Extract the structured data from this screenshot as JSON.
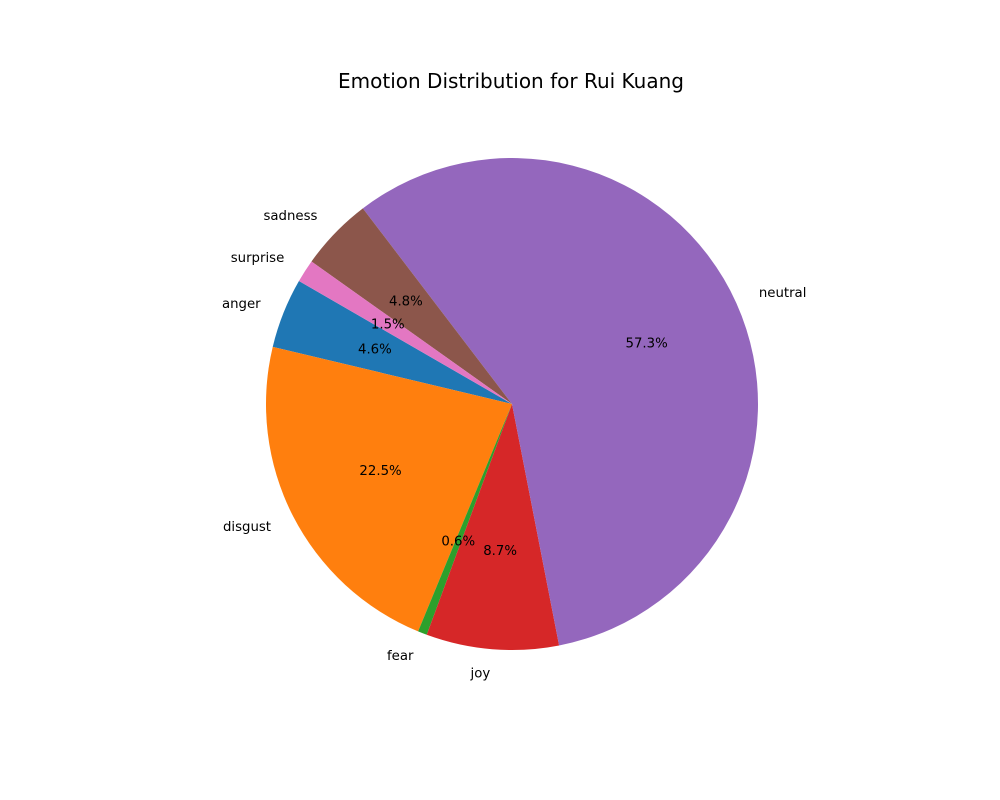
{
  "chart_data": {
    "type": "pie",
    "title": "Emotion Distribution for Rui Kuang",
    "start_angle_deg": 150,
    "direction": "counterclockwise",
    "slices": [
      {
        "label": "anger",
        "percent_label": "4.6%",
        "value": 4.6,
        "color": "#1f77b4"
      },
      {
        "label": "disgust",
        "percent_label": "22.5%",
        "value": 22.5,
        "color": "#ff7f0e"
      },
      {
        "label": "fear",
        "percent_label": "0.6%",
        "value": 0.6,
        "color": "#2ca02c"
      },
      {
        "label": "joy",
        "percent_label": "8.7%",
        "value": 8.7,
        "color": "#d62728"
      },
      {
        "label": "neutral",
        "percent_label": "57.3%",
        "value": 57.3,
        "color": "#9467bd"
      },
      {
        "label": "sadness",
        "percent_label": "4.8%",
        "value": 4.8,
        "color": "#8c564b"
      },
      {
        "label": "surprise",
        "percent_label": "1.5%",
        "value": 1.5,
        "color": "#e377c2"
      }
    ]
  }
}
